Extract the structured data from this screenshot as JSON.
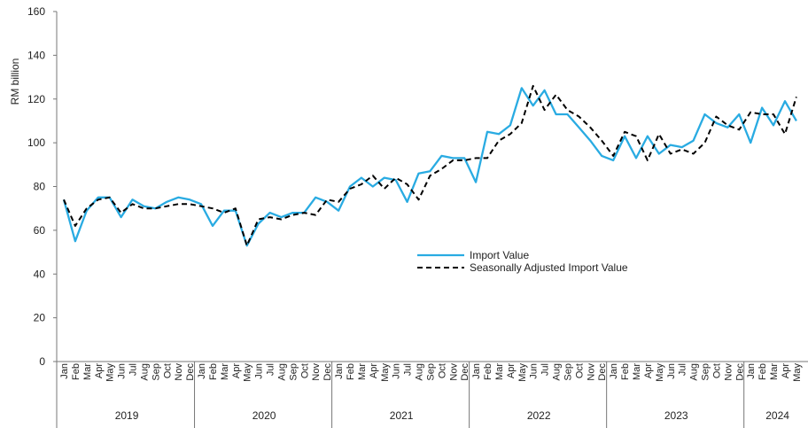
{
  "chart_data": {
    "type": "line",
    "ylabel": "RM billion",
    "ylim": [
      0,
      160
    ],
    "yticks": [
      0,
      20,
      40,
      60,
      80,
      100,
      120,
      140,
      160
    ],
    "grid": false,
    "legend_position": "center-right",
    "years": [
      "2019",
      "2020",
      "2021",
      "2022",
      "2023",
      "2024"
    ],
    "months": [
      "Jan",
      "Feb",
      "Mar",
      "Apr",
      "May",
      "Jun",
      "Jul",
      "Aug",
      "Sep",
      "Oct",
      "Nov",
      "Dec"
    ],
    "x": [
      "2019-01",
      "2019-02",
      "2019-03",
      "2019-04",
      "2019-05",
      "2019-06",
      "2019-07",
      "2019-08",
      "2019-09",
      "2019-10",
      "2019-11",
      "2019-12",
      "2020-01",
      "2020-02",
      "2020-03",
      "2020-04",
      "2020-05",
      "2020-06",
      "2020-07",
      "2020-08",
      "2020-09",
      "2020-10",
      "2020-11",
      "2020-12",
      "2021-01",
      "2021-02",
      "2021-03",
      "2021-04",
      "2021-05",
      "2021-06",
      "2021-07",
      "2021-08",
      "2021-09",
      "2021-10",
      "2021-11",
      "2021-12",
      "2022-01",
      "2022-02",
      "2022-03",
      "2022-04",
      "2022-05",
      "2022-06",
      "2022-07",
      "2022-08",
      "2022-09",
      "2022-10",
      "2022-11",
      "2022-12",
      "2023-01",
      "2023-02",
      "2023-03",
      "2023-04",
      "2023-05",
      "2023-06",
      "2023-07",
      "2023-08",
      "2023-09",
      "2023-10",
      "2023-11",
      "2023-12",
      "2024-01",
      "2024-02",
      "2024-03",
      "2024-04",
      "2024-05"
    ],
    "series": [
      {
        "name": "Import Value",
        "color": "#29abe2",
        "dash": "solid",
        "values": [
          74,
          55,
          69,
          75,
          75,
          66,
          74,
          71,
          70,
          73,
          75,
          74,
          72,
          62,
          69,
          69,
          53,
          63,
          68,
          66,
          68,
          68,
          75,
          73,
          69,
          80,
          84,
          80,
          84,
          83,
          73,
          86,
          87,
          94,
          93,
          93,
          82,
          105,
          104,
          108,
          125,
          117,
          124,
          113,
          113,
          107,
          101,
          94,
          92,
          103,
          93,
          103,
          95,
          99,
          98,
          101,
          113,
          109,
          107,
          113,
          100,
          116,
          108,
          119,
          110
        ]
      },
      {
        "name": "Seasonally Adjusted Import Value",
        "color": "#000000",
        "dash": "dashed",
        "values": [
          74,
          62,
          70,
          74,
          75,
          68,
          72,
          70,
          70,
          71,
          72,
          72,
          71,
          70,
          68,
          70,
          53,
          65,
          66,
          65,
          67,
          68,
          67,
          74,
          73,
          79,
          81,
          85,
          79,
          84,
          81,
          74,
          85,
          88,
          92,
          92,
          93,
          93,
          101,
          104,
          109,
          126,
          115,
          122,
          115,
          112,
          107,
          101,
          94,
          105,
          103,
          92,
          104,
          95,
          97,
          95,
          100,
          112,
          108,
          106,
          114,
          113,
          113,
          104,
          121
        ]
      }
    ]
  }
}
